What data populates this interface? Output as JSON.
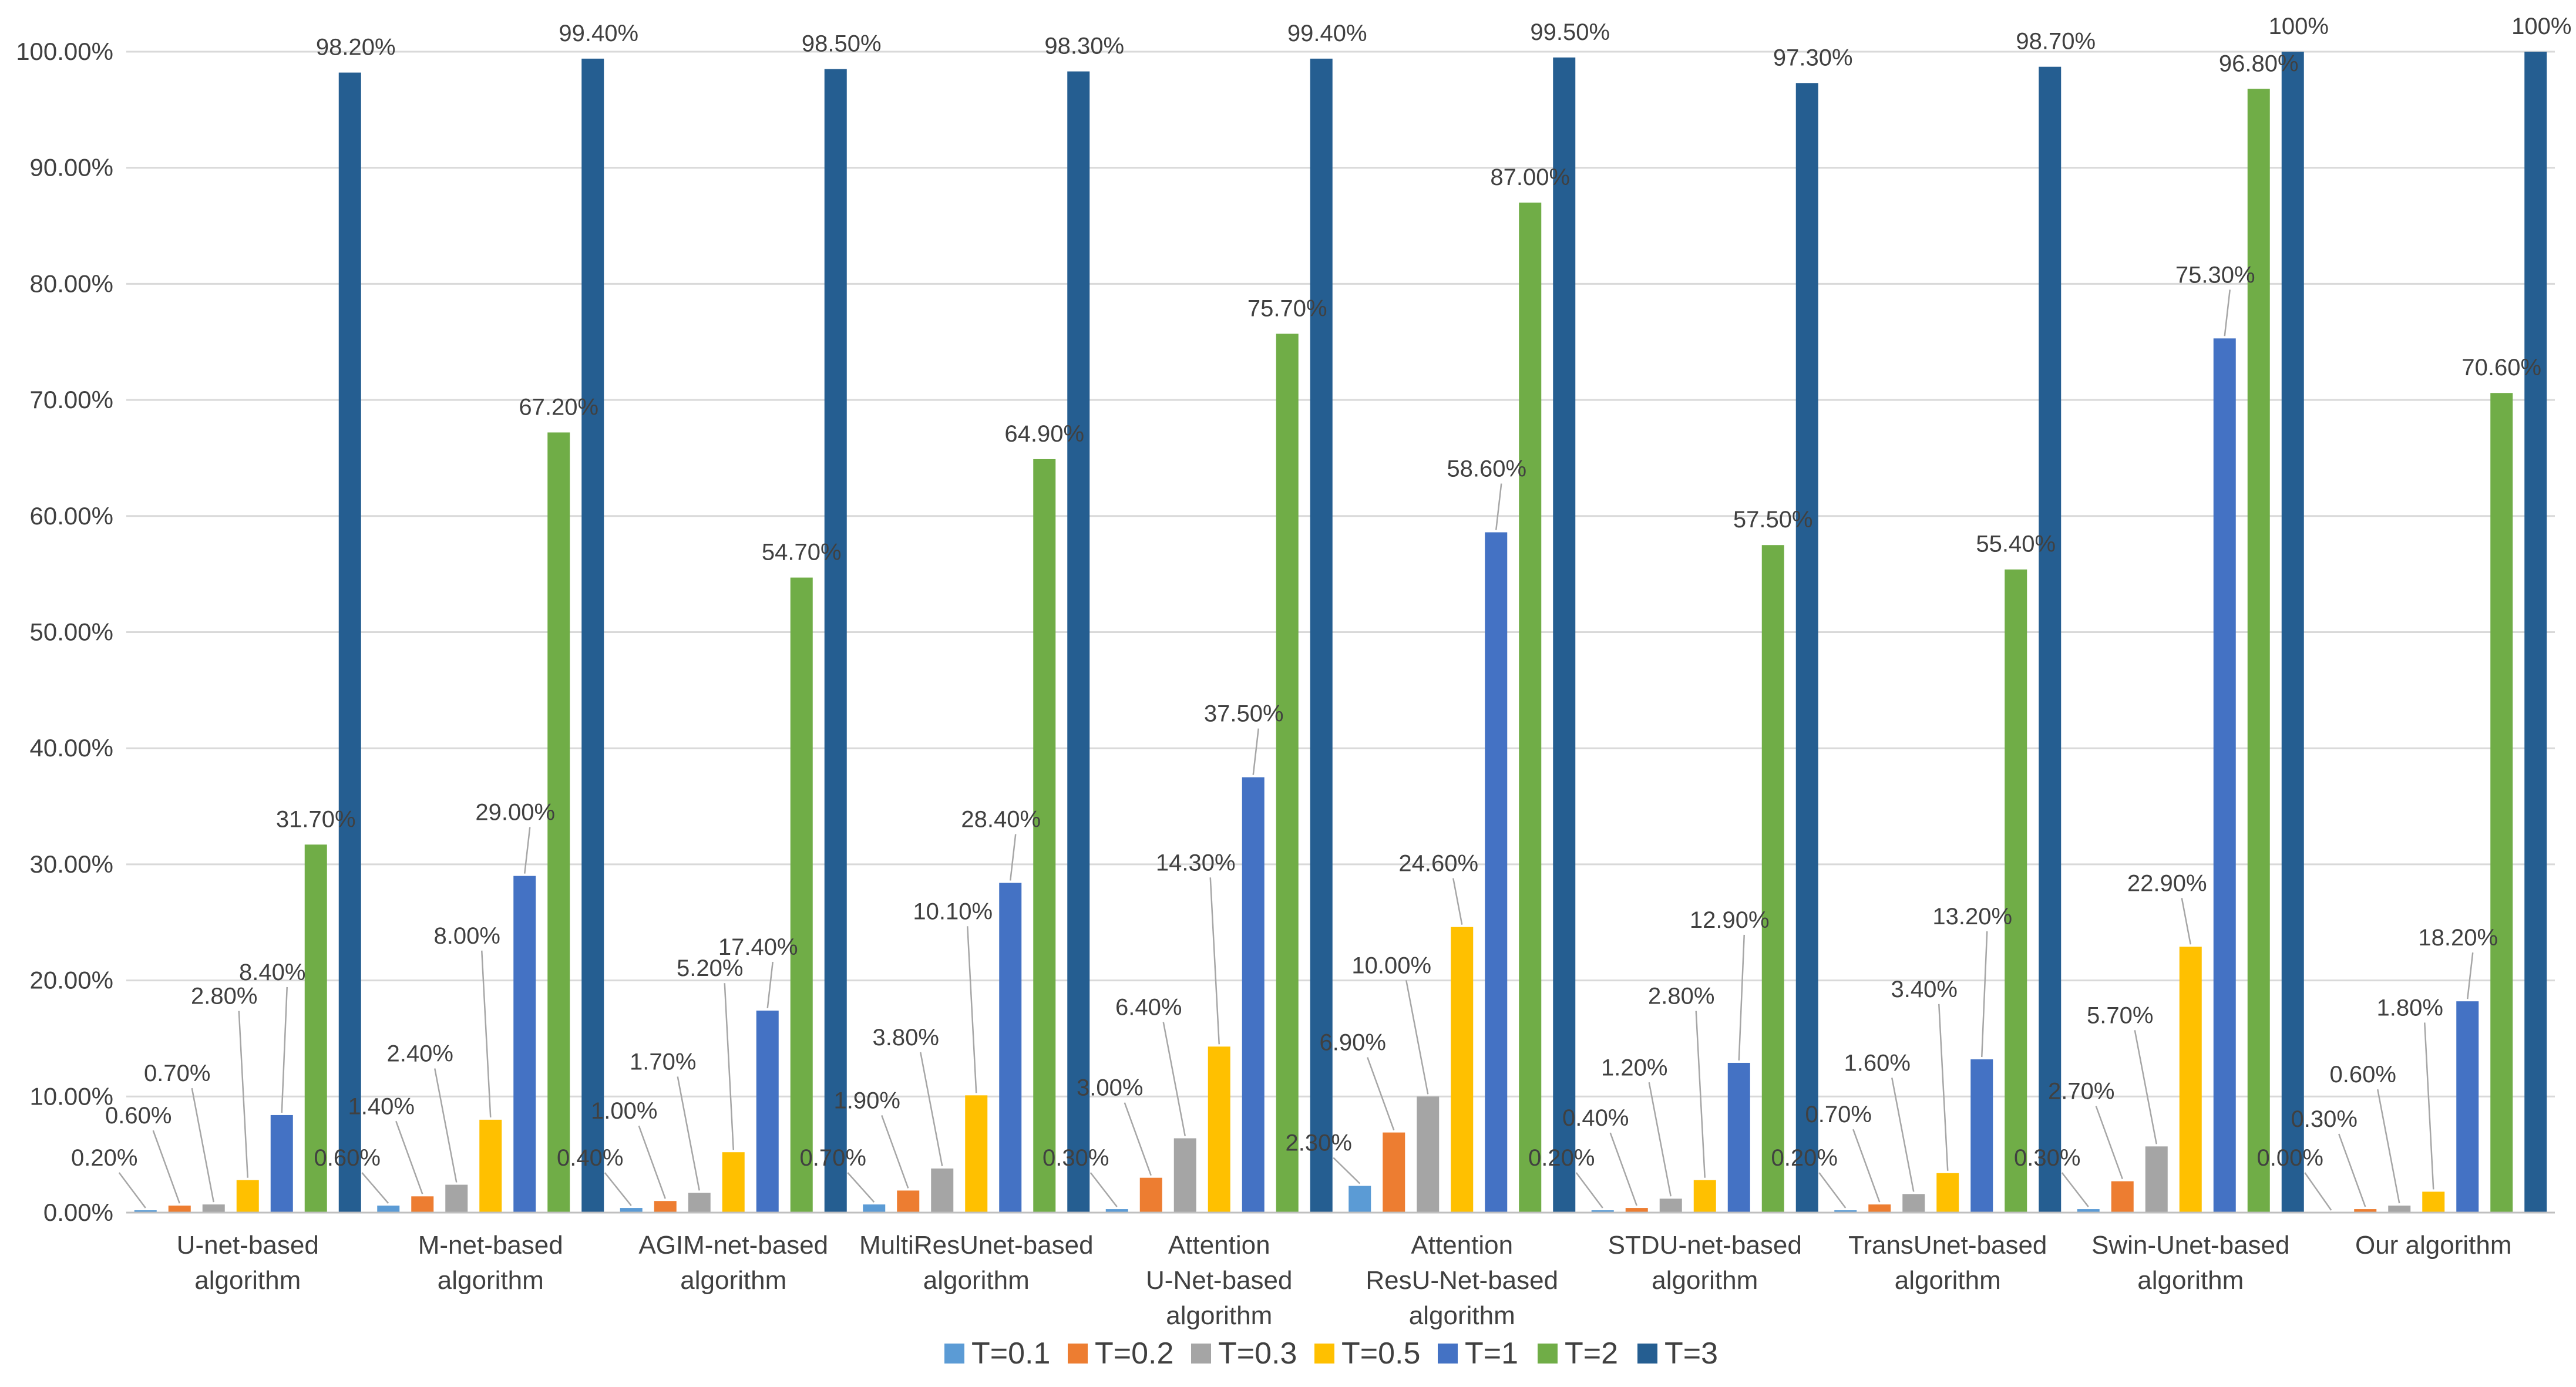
{
  "chart_data": {
    "type": "bar",
    "title": "",
    "xlabel": "",
    "ylabel": "",
    "ylim": [
      0,
      100
    ],
    "grid": true,
    "legend_position": "bottom",
    "y_ticks": [
      "0.00%",
      "10.00%",
      "20.00%",
      "30.00%",
      "40.00%",
      "50.00%",
      "60.00%",
      "70.00%",
      "80.00%",
      "90.00%",
      "100.00%"
    ],
    "categories": [
      [
        "U-net-based",
        "algorithm"
      ],
      [
        "M-net-based",
        "algorithm"
      ],
      [
        "AGIM-net-based",
        "algorithm"
      ],
      [
        "MultiResUnet-based",
        "algorithm"
      ],
      [
        "Attention",
        "U-Net-based",
        "algorithm"
      ],
      [
        "Attention",
        "ResU-Net-based",
        "algorithm"
      ],
      [
        "STDU-net-based",
        "algorithm"
      ],
      [
        "TransUnet-based",
        "algorithm"
      ],
      [
        "Swin-Unet-based",
        "algorithm"
      ],
      [
        "Our algorithm"
      ]
    ],
    "series": [
      {
        "name": "T=0.1",
        "color": "#5b9bd5",
        "values": [
          0.2,
          0.6,
          0.4,
          0.7,
          0.3,
          2.3,
          0.2,
          0.2,
          0.3,
          0.0
        ],
        "labels": [
          "0.20%",
          "0.60%",
          "0.40%",
          "0.70%",
          "0.30%",
          "2.30%",
          "0.20%",
          "0.20%",
          "0.30%",
          "0.00%"
        ]
      },
      {
        "name": "T=0.2",
        "color": "#ed7d31",
        "values": [
          0.6,
          1.4,
          1.0,
          1.9,
          3.0,
          6.9,
          0.4,
          0.7,
          2.7,
          0.3
        ],
        "labels": [
          "0.60%",
          "1.40%",
          "1.00%",
          "1.90%",
          "3.00%",
          "6.90%",
          "0.40%",
          "0.70%",
          "2.70%",
          "0.30%"
        ]
      },
      {
        "name": "T=0.3",
        "color": "#a5a5a5",
        "values": [
          0.7,
          2.4,
          1.7,
          3.8,
          6.4,
          10.0,
          1.2,
          1.6,
          5.7,
          0.6
        ],
        "labels": [
          "0.70%",
          "2.40%",
          "1.70%",
          "3.80%",
          "6.40%",
          "10.00%",
          "1.20%",
          "1.60%",
          "5.70%",
          "0.60%"
        ]
      },
      {
        "name": "T=0.5",
        "color": "#ffc000",
        "values": [
          2.8,
          8.0,
          5.2,
          10.1,
          14.3,
          24.6,
          2.8,
          3.4,
          22.9,
          1.8
        ],
        "labels": [
          "2.80%",
          "8.00%",
          "5.20%",
          "10.10%",
          "14.30%",
          "24.60%",
          "2.80%",
          "3.40%",
          "22.90%",
          "1.80%"
        ]
      },
      {
        "name": "T=1",
        "color": "#4472c4",
        "values": [
          8.4,
          29.0,
          17.4,
          28.4,
          37.5,
          58.6,
          12.9,
          13.2,
          75.3,
          18.2
        ],
        "labels": [
          "8.40%",
          "29.00%",
          "17.40%",
          "28.40%",
          "37.50%",
          "58.60%",
          "12.90%",
          "13.20%",
          "75.30%",
          "18.20%"
        ]
      },
      {
        "name": "T=2",
        "color": "#70ad47",
        "values": [
          31.7,
          67.2,
          54.7,
          64.9,
          75.7,
          87.0,
          57.5,
          55.4,
          96.8,
          70.6
        ],
        "labels": [
          "31.70%",
          "67.20%",
          "54.70%",
          "64.90%",
          "75.70%",
          "87.00%",
          "57.50%",
          "55.40%",
          "96.80%",
          "70.60%"
        ]
      },
      {
        "name": "T=3",
        "color": "#255e91",
        "values": [
          98.2,
          99.4,
          98.5,
          98.3,
          99.4,
          99.5,
          97.3,
          98.7,
          100.0,
          100.0
        ],
        "labels": [
          "98.20%",
          "99.40%",
          "98.50%",
          "98.30%",
          "99.40%",
          "99.50%",
          "97.30%",
          "98.70%",
          "100%",
          "100%"
        ]
      }
    ]
  }
}
